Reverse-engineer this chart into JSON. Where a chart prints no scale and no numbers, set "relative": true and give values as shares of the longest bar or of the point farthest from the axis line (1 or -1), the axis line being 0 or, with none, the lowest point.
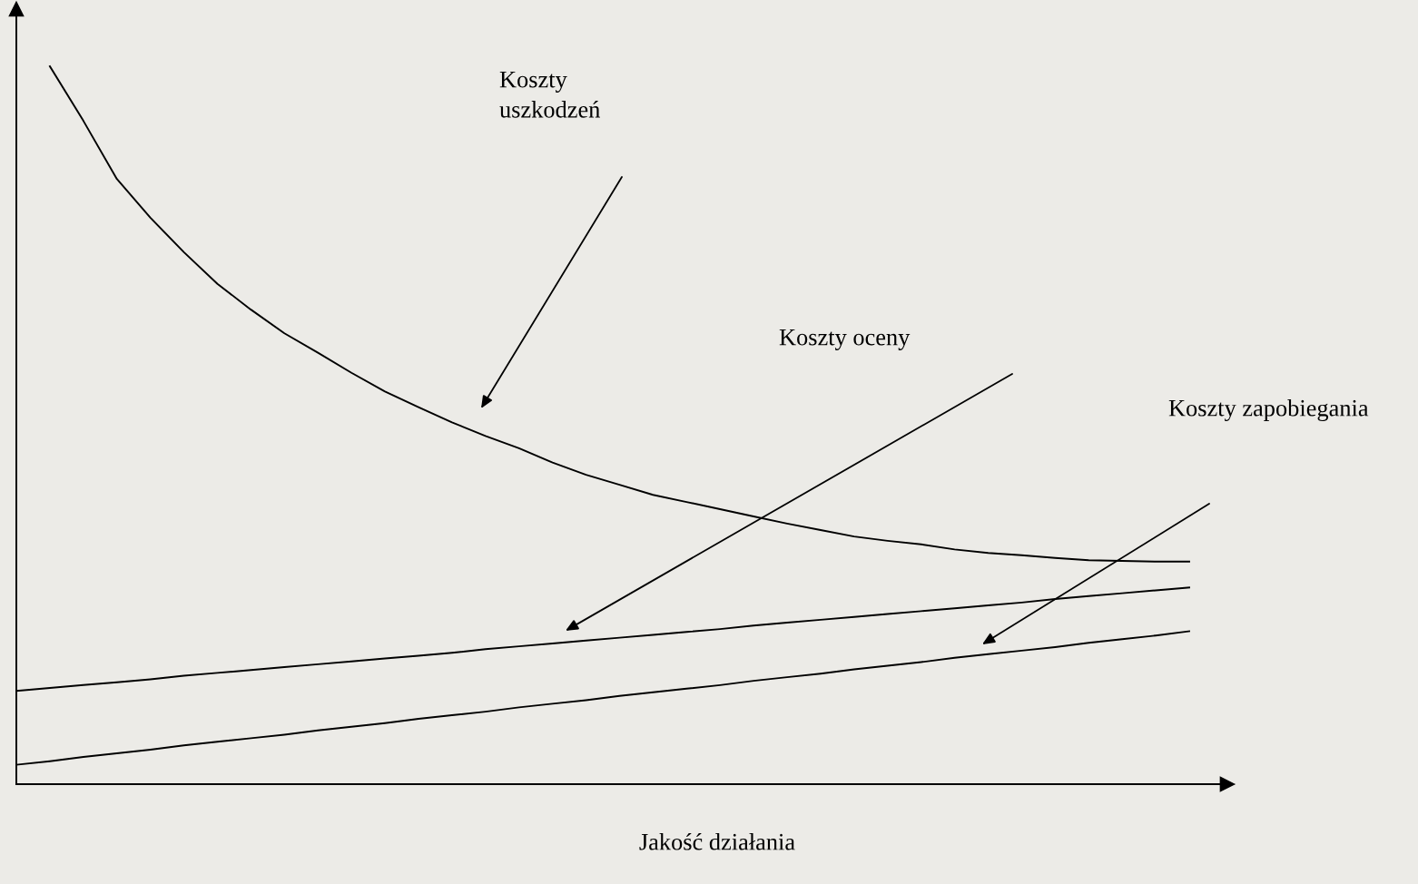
{
  "chart_data": {
    "type": "line",
    "xlabel": "Jakość działania",
    "relative": true,
    "marker": "none",
    "line_style": "solid",
    "grid": false,
    "legend": false,
    "annotations": [
      "Koszty\nuszkodzeń",
      "Koszty oceny",
      "Koszty zapobiegania"
    ],
    "categories": [
      null,
      null,
      null,
      null,
      null,
      null,
      null,
      null,
      null,
      null,
      null,
      null,
      null,
      null,
      null,
      null,
      null,
      null,
      null,
      null,
      null,
      null,
      null,
      null,
      null,
      null,
      null,
      null,
      null,
      null,
      null,
      null,
      null,
      null,
      null,
      null
    ],
    "series": [
      {
        "color": "#000000",
        "values": [
          null,
          1.0,
          0.924,
          0.843,
          0.789,
          0.741,
          0.697,
          0.661,
          0.628,
          0.601,
          0.573,
          0.547,
          0.525,
          0.504,
          0.485,
          0.468,
          0.448,
          0.431,
          0.417,
          0.403,
          0.393,
          0.383,
          0.373,
          0.363,
          0.354,
          0.345,
          0.339,
          0.334,
          0.327,
          0.322,
          0.319,
          0.315,
          0.312,
          0.311,
          0.31,
          0.31
        ]
      },
      {
        "color": "#000000",
        "values": [
          0.13,
          0.134,
          0.138,
          0.142,
          0.146,
          0.151,
          0.155,
          0.159,
          0.163,
          0.167,
          0.171,
          0.175,
          0.179,
          0.183,
          0.188,
          0.192,
          0.196,
          0.2,
          0.204,
          0.208,
          0.212,
          0.216,
          0.221,
          0.225,
          0.229,
          0.233,
          0.237,
          0.241,
          0.245,
          0.249,
          0.253,
          0.258,
          0.262,
          0.266,
          0.27,
          0.274
        ]
      },
      {
        "color": "#000000",
        "values": [
          0.027,
          0.032,
          0.038,
          0.043,
          0.048,
          0.054,
          0.059,
          0.064,
          0.069,
          0.075,
          0.08,
          0.085,
          0.091,
          0.096,
          0.101,
          0.107,
          0.112,
          0.117,
          0.123,
          0.128,
          0.133,
          0.138,
          0.144,
          0.149,
          0.154,
          0.16,
          0.165,
          0.17,
          0.176,
          0.181,
          0.186,
          0.191,
          0.197,
          0.202,
          0.207,
          0.213
        ]
      }
    ]
  }
}
